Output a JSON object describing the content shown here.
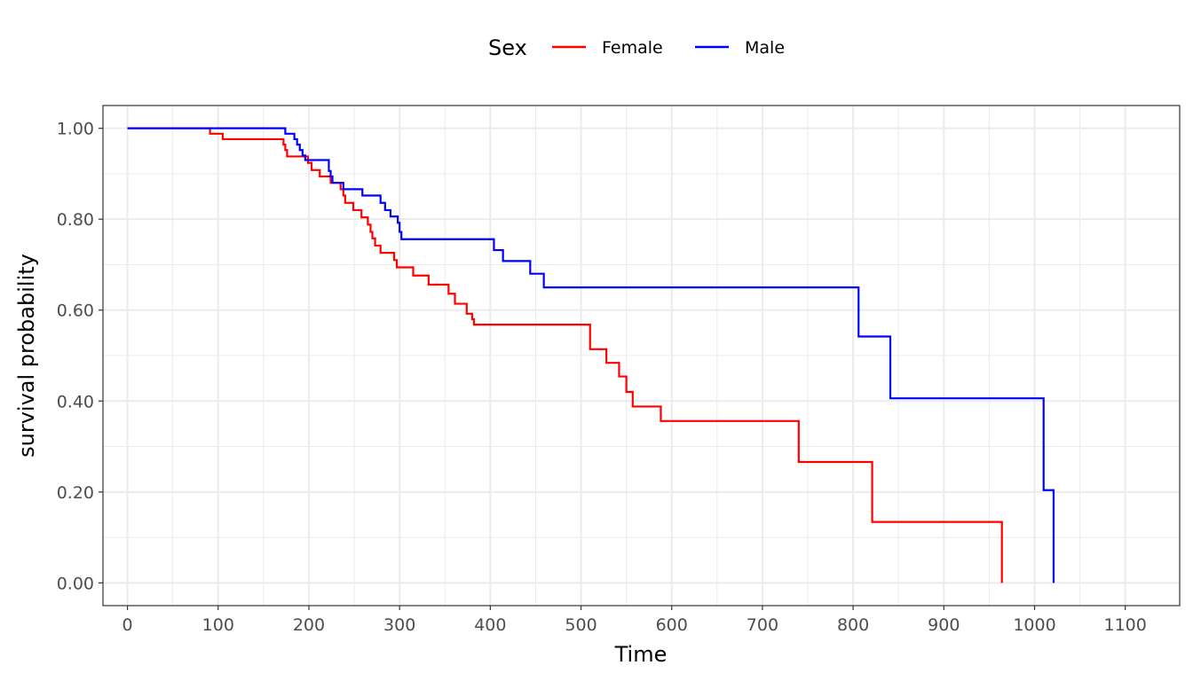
{
  "chart_data": {
    "type": "line",
    "step": true,
    "title": "",
    "xlabel": "Time",
    "ylabel": "survival probability",
    "xlim": [
      -27,
      1160
    ],
    "ylim": [
      -0.05,
      1.05
    ],
    "xticks": [
      0,
      100,
      200,
      300,
      400,
      500,
      600,
      700,
      800,
      900,
      1000,
      1100
    ],
    "xtick_labels": [
      "0",
      "100",
      "200",
      "300",
      "400",
      "500",
      "600",
      "700",
      "800",
      "900",
      "1000",
      "1100"
    ],
    "yticks": [
      0,
      0.2,
      0.4,
      0.6,
      0.8,
      1.0
    ],
    "ytick_labels": [
      "0.00",
      "0.20",
      "0.40",
      "0.60",
      "0.80",
      "1.00"
    ],
    "grid": true,
    "legend": {
      "title": "Sex",
      "position": "top"
    },
    "series": [
      {
        "name": "Female",
        "color": "#ff0000",
        "x": [
          0,
          91,
          105,
          172,
          174,
          176,
          199,
          203,
          212,
          224,
          235,
          238,
          240,
          249,
          258,
          265,
          268,
          270,
          273,
          279,
          294,
          297,
          315,
          332,
          354,
          361,
          374,
          380,
          382,
          384,
          510,
          528,
          542,
          550,
          557,
          588,
          740,
          821,
          964,
          964
        ],
        "y": [
          1.0,
          0.988,
          0.976,
          0.964,
          0.952,
          0.938,
          0.924,
          0.908,
          0.894,
          0.88,
          0.866,
          0.852,
          0.836,
          0.82,
          0.804,
          0.788,
          0.772,
          0.758,
          0.742,
          0.726,
          0.71,
          0.694,
          0.676,
          0.656,
          0.636,
          0.614,
          0.592,
          0.58,
          0.568,
          0.568,
          0.514,
          0.484,
          0.454,
          0.42,
          0.388,
          0.356,
          0.266,
          0.134,
          0.134,
          0.0
        ]
      },
      {
        "name": "Male",
        "color": "#0000ff",
        "x": [
          0,
          174,
          184,
          187,
          190,
          193,
          196,
          199,
          222,
          224,
          226,
          238,
          259,
          279,
          284,
          290,
          298,
          300,
          302,
          304,
          404,
          414,
          444,
          459,
          806,
          841,
          1010,
          1021,
          1021
        ],
        "y": [
          1.0,
          0.988,
          0.976,
          0.964,
          0.952,
          0.94,
          0.93,
          0.93,
          0.906,
          0.894,
          0.88,
          0.866,
          0.852,
          0.836,
          0.82,
          0.806,
          0.792,
          0.772,
          0.756,
          0.756,
          0.732,
          0.708,
          0.68,
          0.65,
          0.542,
          0.406,
          0.204,
          0.204,
          0.0
        ]
      }
    ]
  }
}
